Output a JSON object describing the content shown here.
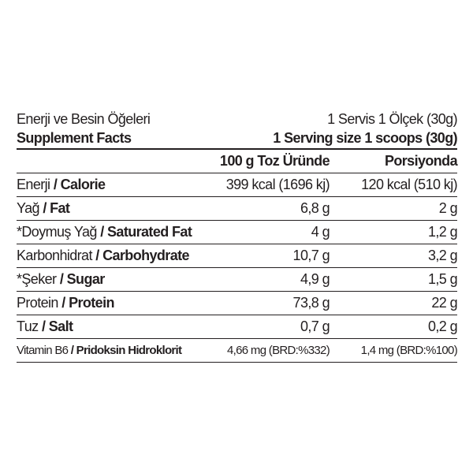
{
  "header": {
    "title_tr": "Enerji ve Besin Öğeleri",
    "serving_tr": "1 Servis 1 Ölçek (30g)",
    "title_en": "Supplement Facts",
    "serving_en": "1 Serving size 1 scoops (30g)"
  },
  "columns": [
    "100 g Toz Üründe",
    "Porsiyonda"
  ],
  "rows": [
    {
      "tr": "Enerji",
      "en": "Calorie",
      "per100": "399 kcal (1696 kj)",
      "serving": "120 kcal (510 kj)"
    },
    {
      "tr": "Yağ",
      "en": "Fat",
      "per100": "6,8 g",
      "serving": "2 g"
    },
    {
      "tr": "*Doymuş Yağ",
      "en": "Saturated Fat",
      "per100": "4 g",
      "serving": "1,2 g"
    },
    {
      "tr": "Karbonhidrat",
      "en": "Carbohydrate",
      "per100": "10,7 g",
      "serving": "3,2 g"
    },
    {
      "tr": "*Şeker",
      "en": "Sugar",
      "per100": "4,9 g",
      "serving": "1,5 g"
    },
    {
      "tr": "Protein",
      "en": "Protein",
      "per100": "73,8 g",
      "serving": "22 g"
    },
    {
      "tr": "Tuz",
      "en": "Salt",
      "per100": "0,7 g",
      "serving": "0,2 g"
    },
    {
      "tr": "Vitamin B6",
      "en": "Pridoksin Hidroklorit",
      "per100": "4,66 mg (BRD:%332)",
      "serving": "1,4 mg (BRD:%100)"
    }
  ]
}
